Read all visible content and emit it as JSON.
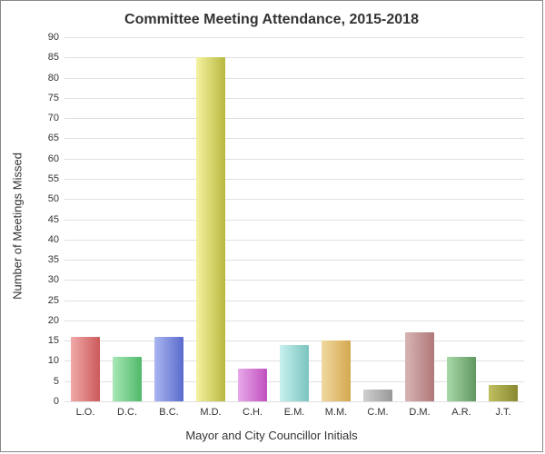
{
  "chart": {
    "type": "bar",
    "title": "Committee Meeting Attendance, 2015-2018",
    "title_fontsize": 16,
    "xlabel": "Mayor and City Councillor Initials",
    "ylabel": "Number of Meetings Missed",
    "label_fontsize": 13,
    "tick_fontsize": 11,
    "ylim": [
      0,
      90
    ],
    "ytick_step": 5,
    "background_color": "#ffffff",
    "grid_color": "#e0e0e0",
    "border_color": "#888888",
    "bar_width": 0.7,
    "categories": [
      "L.O.",
      "D.C.",
      "B.C.",
      "M.D.",
      "C.H.",
      "E.M.",
      "M.M.",
      "C.M.",
      "D.M.",
      "A.R.",
      "J.T."
    ],
    "values": [
      16,
      11,
      16,
      85,
      8,
      14,
      15,
      3,
      17,
      11,
      4
    ],
    "bar_gradients": [
      [
        "#f0a9a9",
        "#cc5a5a"
      ],
      [
        "#a9e8b6",
        "#4fb86a"
      ],
      [
        "#a9b6f0",
        "#5a6acc"
      ],
      [
        "#f5f3a0",
        "#b8b840"
      ],
      [
        "#e8a9e8",
        "#c050c0"
      ],
      [
        "#c8f0ee",
        "#7ac4c0"
      ],
      [
        "#f0d9a0",
        "#d4a850"
      ],
      [
        "#d0d0d0",
        "#989898"
      ],
      [
        "#d8b4b4",
        "#b07878"
      ],
      [
        "#a8d8a8",
        "#609860"
      ],
      [
        "#c0c060",
        "#888830"
      ]
    ]
  }
}
